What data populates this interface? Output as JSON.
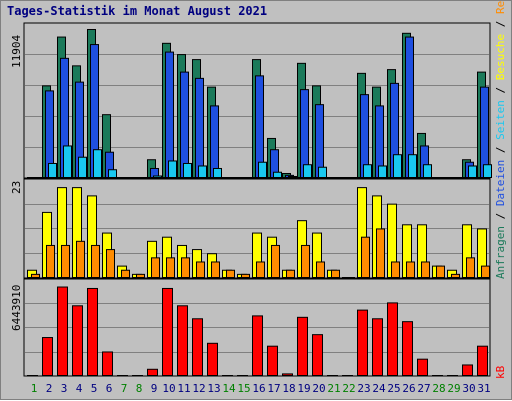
{
  "chart_data": {
    "type": "bar",
    "title": "Tages-Statistik im Monat August 2021",
    "categories": [
      "1",
      "2",
      "3",
      "4",
      "5",
      "6",
      "7",
      "8",
      "9",
      "10",
      "11",
      "12",
      "13",
      "14",
      "15",
      "16",
      "17",
      "18",
      "19",
      "20",
      "21",
      "22",
      "23",
      "24",
      "25",
      "26",
      "27",
      "28",
      "29",
      "30",
      "31"
    ],
    "weekend_days": [
      "1",
      "7",
      "8",
      "14",
      "15",
      "21",
      "22",
      "28",
      "29"
    ],
    "colors": {
      "anfragen": "#1b7a5a",
      "dateien": "#1f4fe0",
      "seiten": "#19c8f0",
      "besuche": "#ffff00",
      "rechner": "#ff8c00",
      "kb": "#ff0000",
      "weekday_label": "#000080",
      "weekend_label": "#008000",
      "panel_bg": "#c0c0c0",
      "grid": "#808080"
    },
    "panels": [
      {
        "id": "requests",
        "max_label": "11904",
        "ylim": [
          0,
          11904
        ],
        "series": [
          {
            "name": "Anfragen",
            "key": "anfragen",
            "values": [
              0,
              7400,
              11300,
              9000,
              11904,
              5100,
              0,
              0,
              1500,
              10800,
              9900,
              9500,
              7300,
              0,
              0,
              9500,
              3200,
              400,
              9200,
              7400,
              0,
              0,
              8400,
              7300,
              8700,
              11600,
              3600,
              0,
              0,
              1500,
              8500
            ]
          },
          {
            "name": "Dateien",
            "key": "dateien",
            "values": [
              0,
              7000,
              9600,
              7700,
              10700,
              2100,
              0,
              0,
              800,
              10100,
              8500,
              8000,
              5800,
              0,
              0,
              8200,
              2300,
              250,
              7100,
              5900,
              0,
              0,
              6700,
              5800,
              7600,
              11300,
              2600,
              0,
              0,
              1300,
              7300
            ]
          },
          {
            "name": "Seiten",
            "key": "seiten",
            "values": [
              0,
              1200,
              2600,
              1700,
              2300,
              700,
              0,
              0,
              200,
              1400,
              1200,
              1000,
              800,
              0,
              0,
              1300,
              500,
              100,
              1100,
              900,
              0,
              0,
              1100,
              1000,
              1900,
              1900,
              1100,
              0,
              0,
              1000,
              1100
            ]
          }
        ]
      },
      {
        "id": "visits",
        "max_label": "23",
        "ylim": [
          0,
          23
        ],
        "series": [
          {
            "name": "Besuche",
            "key": "besuche",
            "values": [
              2,
              16,
              22,
              22,
              20,
              11,
              3,
              1,
              9,
              10,
              8,
              7,
              6,
              2,
              1,
              11,
              10,
              2,
              14,
              11,
              2,
              0,
              22,
              20,
              18,
              13,
              13,
              3,
              2,
              13,
              12
            ]
          },
          {
            "name": "Rechner",
            "key": "rechner",
            "values": [
              1,
              8,
              8,
              9,
              8,
              7,
              2,
              1,
              5,
              5,
              5,
              4,
              4,
              2,
              1,
              4,
              8,
              2,
              8,
              4,
              2,
              0,
              10,
              12,
              4,
              4,
              4,
              3,
              1,
              5,
              3
            ]
          }
        ]
      },
      {
        "id": "kb",
        "max_label": "6443910",
        "ylim": [
          0,
          6443910
        ],
        "series": [
          {
            "name": "kB",
            "key": "kb",
            "values": [
              0,
              2700000,
              6200000,
              4900000,
              6100000,
              1700000,
              0,
              0,
              500000,
              6100000,
              4900000,
              4000000,
              2300000,
              0,
              0,
              4200000,
              2100000,
              180000,
              4100000,
              2900000,
              0,
              0,
              4600000,
              4000000,
              5100000,
              3800000,
              1200000,
              0,
              0,
              800000,
              2100000
            ]
          }
        ]
      }
    ],
    "right_legend": {
      "top": {
        "parts": [
          {
            "text": "Anfragen",
            "key": "anfragen"
          },
          {
            "text": " / ",
            "key": "sep"
          },
          {
            "text": "Dateien",
            "key": "dateien"
          },
          {
            "text": " / ",
            "key": "sep"
          },
          {
            "text": "Seiten",
            "key": "seiten"
          },
          {
            "text": " / ",
            "key": "sep"
          },
          {
            "text": "Besuche",
            "key": "besuche"
          },
          {
            "text": " / ",
            "key": "sep"
          },
          {
            "text": "Rechner",
            "key": "rechner"
          }
        ]
      },
      "bottom": {
        "text": "kB",
        "key": "kb"
      }
    }
  }
}
